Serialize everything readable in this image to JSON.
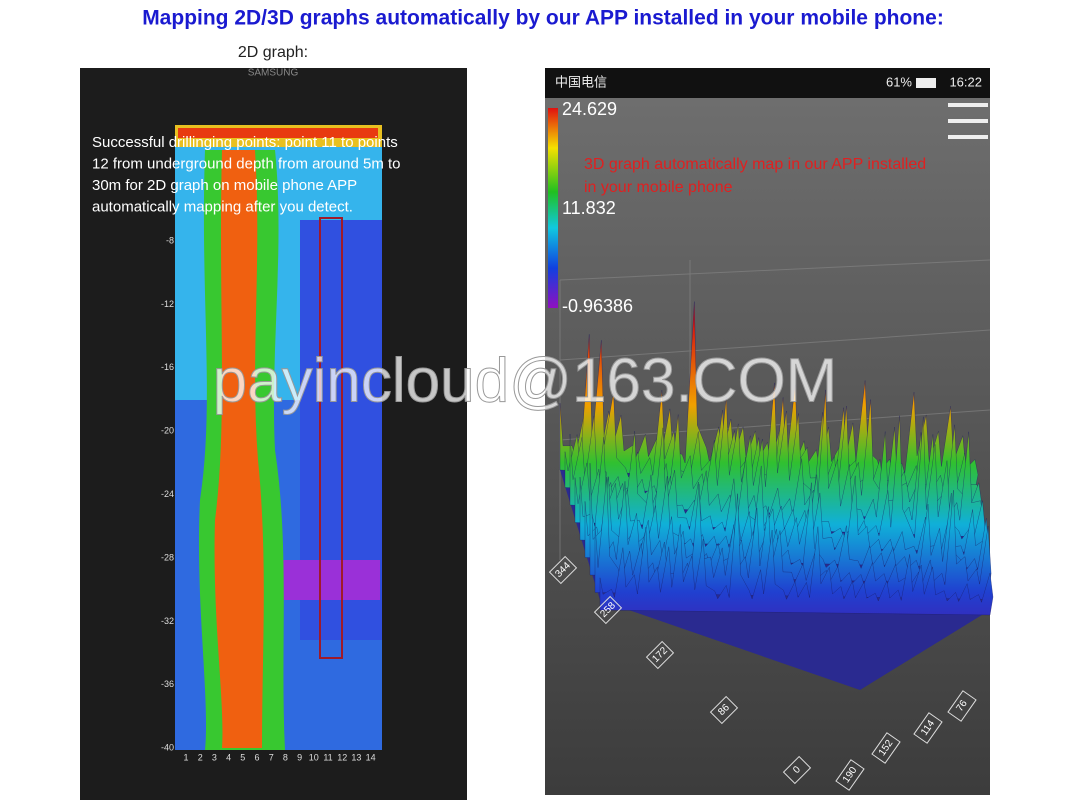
{
  "header": {
    "title": "Mapping 2D/3D graphs automatically by our APP installed in your mobile phone:"
  },
  "left_phone": {
    "caption": "2D graph:",
    "brand": "SAMSUNG",
    "description": [
      "Successful drillinging points: point 11 to points",
      "12 from underground depth from around 5m to",
      "30m for 2D graph on mobile phone APP",
      "automatically mapping after you detect."
    ],
    "y_labels": [
      "-8",
      "-12",
      "-16",
      "-20",
      "-24",
      "-28",
      "-32",
      "-36",
      "-40"
    ],
    "x_labels": [
      "1",
      "2",
      "3",
      "4",
      "5",
      "6",
      "7",
      "8",
      "9",
      "10",
      "11",
      "12",
      "13",
      "14"
    ]
  },
  "right_phone": {
    "carrier": "中国电信",
    "battery": "61%",
    "time": "16:22",
    "colorbar_labels": [
      "24.629",
      "11.832",
      "-0.96386"
    ],
    "note": [
      "3D graph automatically map in our APP installed",
      "in your mobile phone"
    ],
    "left_axis_labels": [
      "344",
      "258",
      "172",
      "86",
      "0"
    ],
    "right_axis_labels": [
      "190",
      "152",
      "114",
      "76"
    ]
  },
  "watermark": "payincloud@163.COM"
}
